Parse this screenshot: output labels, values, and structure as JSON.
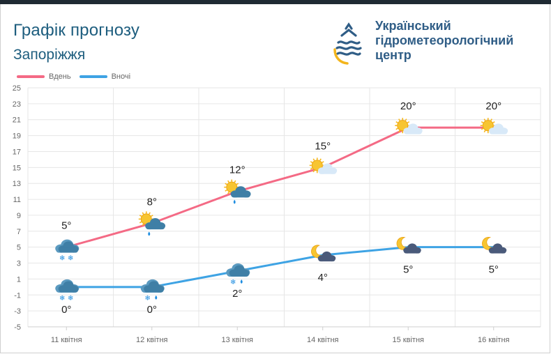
{
  "header": {
    "title": "Графік прогнозу",
    "city": "Запоріжжя",
    "org_line1": "Український",
    "org_line2": "гідрометеорологічний",
    "org_line3": "центр"
  },
  "colors": {
    "day": "#f46a85",
    "night": "#3ea3e4",
    "grid": "#e6e6e6",
    "title": "#1d5d7e",
    "org": "#2f5d86",
    "logo_yellow": "#f3b51c"
  },
  "chart_data": {
    "type": "line",
    "title": "Графік прогнозу",
    "categories": [
      "11 квітня",
      "12 квітня",
      "13 квітня",
      "14 квітня",
      "15 квітня",
      "16 квітня"
    ],
    "series": [
      {
        "name": "Вдень",
        "values": [
          5,
          8,
          12,
          15,
          20,
          20
        ],
        "labels": [
          "5°",
          "8°",
          "12°",
          "15°",
          "20°",
          "20°"
        ],
        "icons": [
          "cloud-snow-rain-icon",
          "sun-cloud-rain-icon",
          "sun-cloud-rain-icon",
          "sun-cloud-icon",
          "sun-cloud-icon",
          "sun-cloud-icon"
        ]
      },
      {
        "name": "Вночі",
        "values": [
          0,
          0,
          2,
          4,
          5,
          5
        ],
        "labels": [
          "0°",
          "0°",
          "2°",
          "4°",
          "5°",
          "5°"
        ],
        "icons": [
          "cloud-snow-icon",
          "cloud-rain-snow-icon",
          "cloud-rain-snow-icon",
          "moon-cloud-icon",
          "moon-cloud-icon",
          "moon-cloud-icon"
        ]
      }
    ],
    "y_ticks": [
      "25",
      "23",
      "21",
      "19",
      "17",
      "15",
      "13",
      "11",
      "9",
      "7",
      "5",
      "3",
      "1",
      "-1",
      "-3",
      "-5"
    ],
    "ylim": [
      -5,
      25
    ],
    "y_step": 2,
    "grid": true,
    "legend": "top-left"
  }
}
